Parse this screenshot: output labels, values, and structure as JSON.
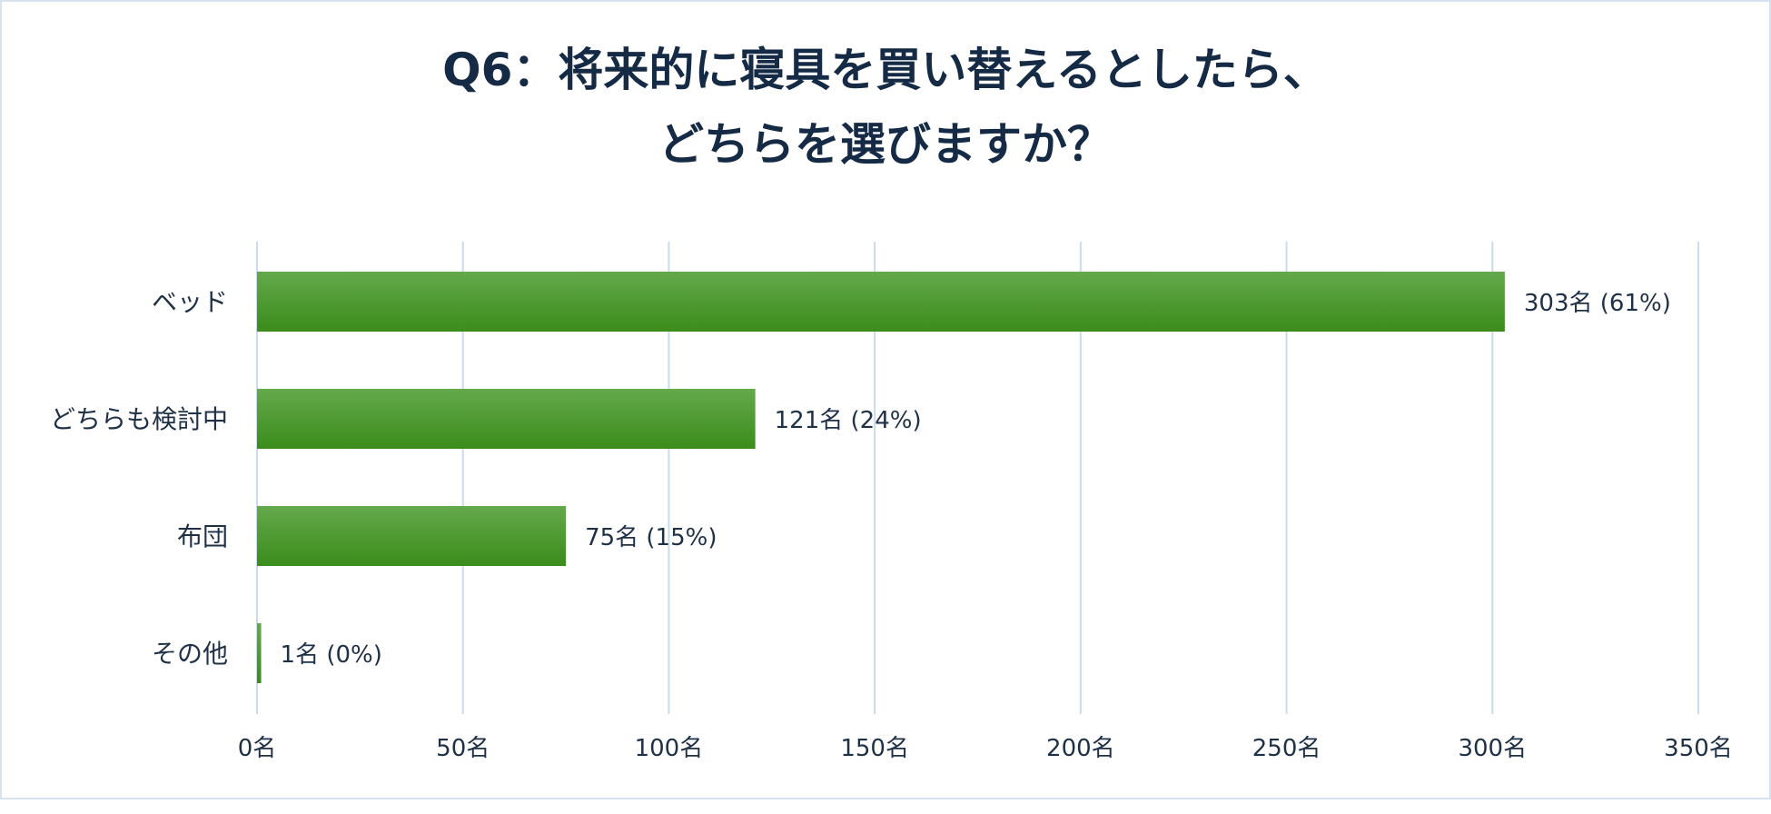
{
  "title_lines": [
    "Q6：将来的に寝具を買い替えるとしたら、",
    "どちらを選びますか？"
  ],
  "colors": {
    "bar_top": "#64a94c",
    "bar_bottom": "#3b8c1b",
    "grid": "#c9dceb",
    "text": "#1f3147",
    "title": "#152a45",
    "border": "#d6e3ef"
  },
  "chart_data": {
    "type": "bar",
    "orientation": "horizontal",
    "title": "Q6：将来的に寝具を買い替えるとしたら、どちらを選びますか？",
    "categories": [
      "ベッド",
      "どちらも検討中",
      "布団",
      "その他"
    ],
    "values": [
      303,
      121,
      75,
      1
    ],
    "data_labels": [
      "303名 (61%)",
      "121名 (24%)",
      "75名 (15%)",
      "1名 (0%)"
    ],
    "xlim": [
      0,
      350
    ],
    "xticks": [
      0,
      50,
      100,
      150,
      200,
      250,
      300,
      350
    ],
    "xtick_labels": [
      "0名",
      "50名",
      "100名",
      "150名",
      "200名",
      "250名",
      "300名",
      "350名"
    ],
    "grid": "vertical",
    "legend": "none"
  }
}
